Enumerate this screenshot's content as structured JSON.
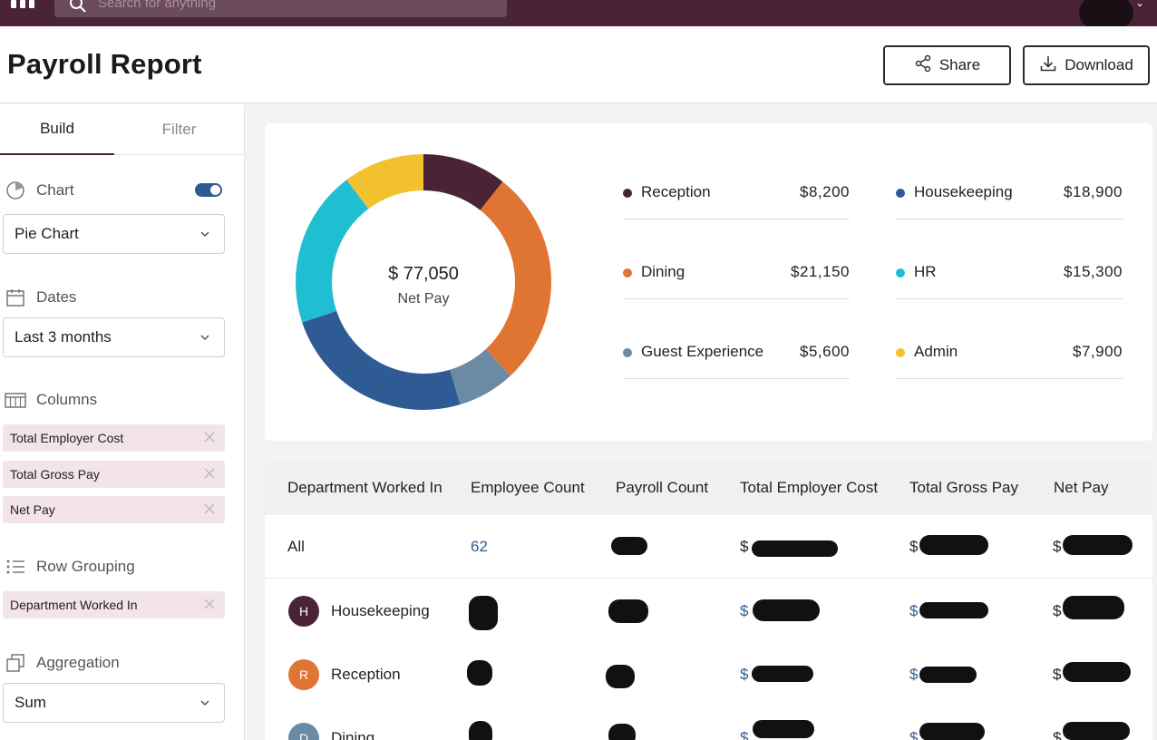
{
  "topbar": {
    "search_placeholder": "Search for anything",
    "icons": {
      "logo": "bar-logo",
      "search": "search-icon",
      "account": "chevron-down-icon"
    }
  },
  "header": {
    "title": "Payroll Report",
    "share_label": "Share",
    "download_label": "Download"
  },
  "sidebar": {
    "tabs": [
      {
        "label": "Build",
        "active": true
      },
      {
        "label": "Filter",
        "active": false
      }
    ],
    "chart": {
      "label": "Chart",
      "enabled": true,
      "type_value": "Pie Chart"
    },
    "dates": {
      "label": "Dates",
      "value": "Last 3 months"
    },
    "columns": {
      "label": "Columns",
      "items": [
        "Total Employer Cost",
        "Total Gross Pay",
        "Net Pay"
      ]
    },
    "row_grouping": {
      "label": "Row Grouping",
      "items": [
        "Department Worked In"
      ]
    },
    "aggregation": {
      "label": "Aggregation",
      "value": "Sum"
    }
  },
  "chart_data": {
    "type": "pie",
    "center_value": "$ 77,050",
    "center_label": "Net Pay",
    "slices": [
      {
        "name": "Reception",
        "label": "$8,200",
        "value": 8200,
        "color": "#4a2436"
      },
      {
        "name": "Dining",
        "label": "$21,150",
        "value": 21150,
        "color": "#e07432"
      },
      {
        "name": "Guest Experience",
        "label": "$5,600",
        "value": 5600,
        "color": "#6b8aa3"
      },
      {
        "name": "Housekeeping",
        "label": "$18,900",
        "value": 18900,
        "color": "#2e5b94"
      },
      {
        "name": "HR",
        "label": "$15,300",
        "value": 15300,
        "color": "#1fbfd1"
      },
      {
        "name": "Admin",
        "label": "$7,900",
        "value": 7900,
        "color": "#f2c12e"
      }
    ]
  },
  "legend": [
    {
      "name": "Reception",
      "value": "$8,200",
      "color": "#4a2436"
    },
    {
      "name": "Housekeeping",
      "value": "$18,900",
      "color": "#2e5b94"
    },
    {
      "name": "Dining",
      "value": "$21,150",
      "color": "#e07432"
    },
    {
      "name": "HR",
      "value": "$15,300",
      "color": "#1fbfd1"
    },
    {
      "name": "Guest Experience",
      "value": "$5,600",
      "color": "#6b8aa3"
    },
    {
      "name": "Admin",
      "value": "$7,900",
      "color": "#f2c12e"
    }
  ],
  "table": {
    "headers": [
      "Department Worked In",
      "Employee Count",
      "Payroll Count",
      "Total Employer Cost",
      "Total Gross Pay",
      "Net Pay"
    ],
    "all_row": {
      "label": "All",
      "employee_count": "62",
      "currency": "$"
    },
    "rows": [
      {
        "initial": "H",
        "department": "Housekeeping",
        "color": "#4a2436",
        "currency": "$"
      },
      {
        "initial": "R",
        "department": "Reception",
        "color": "#e07432",
        "currency": "$"
      },
      {
        "initial": "D",
        "department": "Dining",
        "color": "#6b8aa3",
        "currency": "$"
      }
    ]
  }
}
